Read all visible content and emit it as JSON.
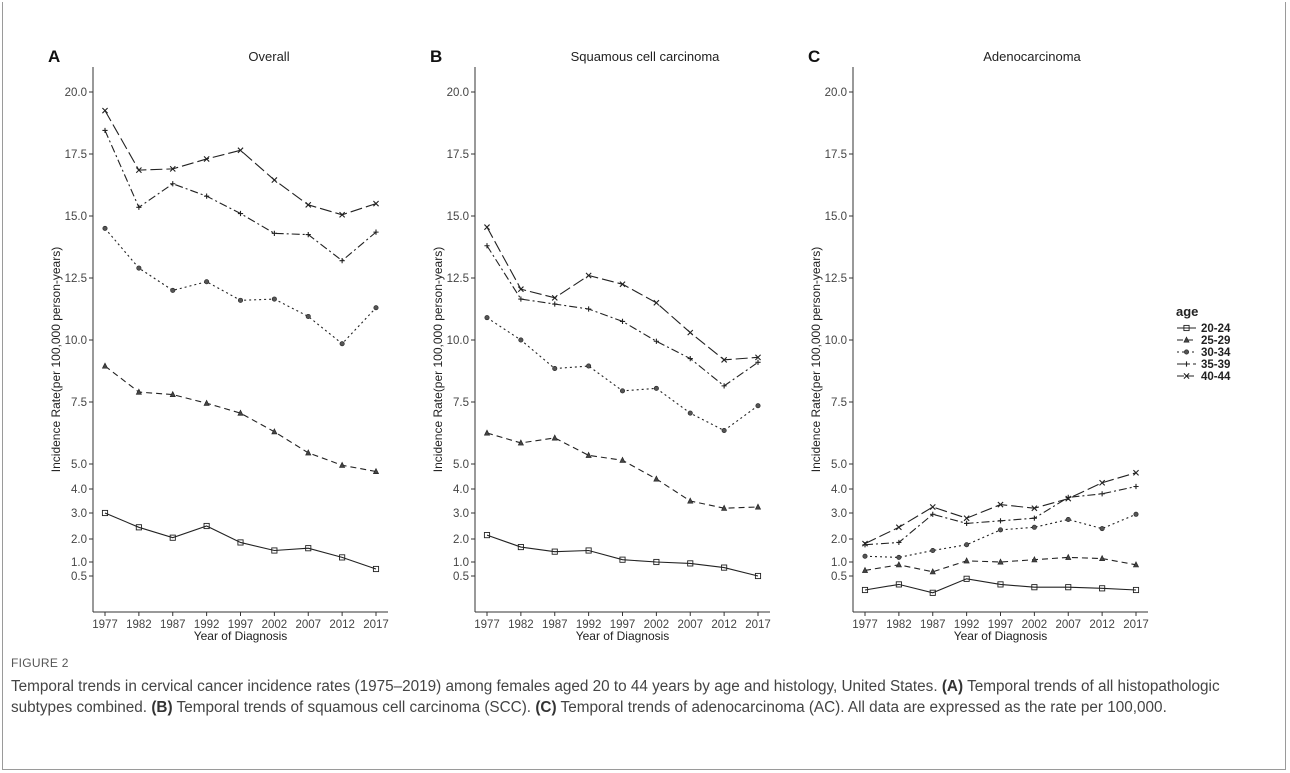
{
  "chart_data": {
    "type": "line",
    "x": [
      1977,
      1982,
      1987,
      1992,
      1997,
      2002,
      2007,
      2012,
      2017
    ],
    "xlabel": "Year of Diagnosis",
    "ylabel": "Incidence Rate(per 100,000 person-years)",
    "ylim": [
      0,
      21
    ],
    "yticks": [
      0.5,
      1.0,
      2.0,
      3.0,
      4.0,
      5.0,
      7.5,
      10.0,
      12.5,
      15.0,
      17.5,
      20.0
    ],
    "ytick_labels": [
      "0.5",
      "1.0",
      "2.0",
      "3.0",
      "4.0",
      "5.0",
      "7.5",
      "10.0",
      "12.5",
      "15.0",
      "17.5",
      "20.0"
    ],
    "xtick_labels": [
      "1977",
      "1982",
      "1987",
      "1992",
      "1997",
      "2002",
      "2007",
      "2012",
      "2017"
    ],
    "grid": false,
    "legend": {
      "title": "age",
      "placement": "right",
      "entries": [
        "20-24",
        "25-29",
        "30-34",
        "35-39",
        "40-44"
      ]
    },
    "panels": [
      {
        "letter": "A",
        "title": "Overall",
        "series": [
          {
            "name": "20-24",
            "values": [
              3.0,
              2.45,
              2.05,
              2.5,
              1.85,
              1.5,
              1.6,
              1.2,
              0.75
            ]
          },
          {
            "name": "25-29",
            "values": [
              8.95,
              7.9,
              7.8,
              7.45,
              7.05,
              6.3,
              5.45,
              4.95,
              4.7
            ]
          },
          {
            "name": "30-34",
            "values": [
              14.5,
              12.9,
              12.0,
              12.35,
              11.6,
              11.65,
              10.95,
              9.85,
              11.3
            ]
          },
          {
            "name": "35-39",
            "values": [
              18.45,
              15.35,
              16.3,
              15.8,
              15.1,
              14.3,
              14.25,
              13.2,
              14.35
            ]
          },
          {
            "name": "40-44",
            "values": [
              19.25,
              16.85,
              16.9,
              17.3,
              17.65,
              16.45,
              15.45,
              15.05,
              15.5
            ]
          }
        ]
      },
      {
        "letter": "B",
        "title": "Squamous cell carcinoma",
        "series": [
          {
            "name": "20-24",
            "values": [
              2.15,
              1.65,
              1.45,
              1.5,
              1.1,
              1.0,
              0.95,
              0.8,
              0.5
            ]
          },
          {
            "name": "25-29",
            "values": [
              6.25,
              5.85,
              6.05,
              5.35,
              5.15,
              4.4,
              3.5,
              3.2,
              3.25
            ]
          },
          {
            "name": "30-34",
            "values": [
              10.9,
              10.0,
              8.85,
              8.95,
              7.95,
              8.05,
              7.05,
              6.35,
              7.35
            ]
          },
          {
            "name": "35-39",
            "values": [
              13.8,
              11.65,
              11.45,
              11.25,
              10.75,
              9.95,
              9.25,
              8.15,
              9.1
            ]
          },
          {
            "name": "40-44",
            "values": [
              14.55,
              12.05,
              11.7,
              12.6,
              12.25,
              11.5,
              10.3,
              9.2,
              9.3
            ]
          }
        ]
      },
      {
        "letter": "C",
        "title": "Adenocarcinoma",
        "series": [
          {
            "name": "20-24",
            "values": [
              0.25,
              0.35,
              0.2,
              0.45,
              0.35,
              0.3,
              0.3,
              0.28,
              0.25
            ]
          },
          {
            "name": "25-29",
            "values": [
              0.7,
              0.9,
              0.65,
              1.05,
              1.0,
              1.1,
              1.2,
              1.15,
              0.9
            ]
          },
          {
            "name": "30-34",
            "values": [
              1.25,
              1.2,
              1.5,
              1.75,
              2.35,
              2.45,
              2.75,
              2.4,
              2.95
            ]
          },
          {
            "name": "35-39",
            "values": [
              1.75,
              1.85,
              2.95,
              2.6,
              2.7,
              2.8,
              3.65,
              3.8,
              4.1
            ]
          },
          {
            "name": "40-44",
            "values": [
              1.8,
              2.45,
              3.25,
              2.8,
              3.35,
              3.2,
              3.6,
              4.25,
              4.65
            ]
          }
        ]
      }
    ]
  },
  "figure": {
    "label": "FIGURE 2",
    "caption_intro": "Temporal trends in cervical cancer incidence rates (1975–2019) among females aged 20 to 44 years by age and histology, United States.",
    "caption_a_tag": "(A)",
    "caption_a": "Temporal trends of all histopathologic subtypes combined.",
    "caption_b_tag": "(B)",
    "caption_b": "Temporal trends of squamous cell carcinoma (SCC).",
    "caption_c_tag": "(C)",
    "caption_c": "Temporal trends of adenocarcinoma (AC). All data are expressed as the rate per 100,000."
  }
}
